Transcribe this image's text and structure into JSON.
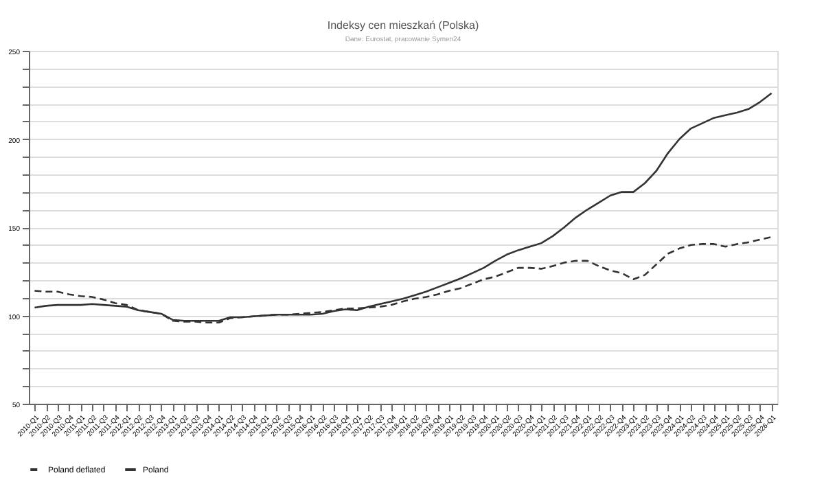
{
  "chart_data": {
    "type": "line",
    "title": "Indeksy cen mieszkań (Polska)",
    "subtitle": "Dane: Eurostat, pracowanie Symen24",
    "categories": [
      "2010-Q1",
      "2010-Q2",
      "2010-Q3",
      "2010-Q4",
      "2011-Q1",
      "2011-Q2",
      "2011-Q3",
      "2011-Q4",
      "2012-Q1",
      "2012-Q2",
      "2012-Q3",
      "2012-Q4",
      "2013-Q1",
      "2013-Q2",
      "2013-Q3",
      "2013-Q4",
      "2014-Q1",
      "2014-Q2",
      "2014-Q3",
      "2014-Q4",
      "2015-Q1",
      "2015-Q2",
      "2015-Q3",
      "2015-Q4",
      "2016-Q1",
      "2016-Q2",
      "2016-Q3",
      "2016-Q4",
      "2017-Q1",
      "2017-Q2",
      "2017-Q3",
      "2017-Q4",
      "2018-Q1",
      "2018-Q2",
      "2018-Q3",
      "2018-Q4",
      "2019-Q1",
      "2019-Q2",
      "2019-Q3",
      "2019-Q4",
      "2020-Q1",
      "2020-Q2",
      "2020-Q3",
      "2020-Q4",
      "2021-Q1",
      "2021-Q2",
      "2021-Q3",
      "2021-Q4",
      "2022-Q1",
      "2022-Q2",
      "2022-Q3",
      "2022-Q4",
      "2023-Q1",
      "2023-Q2",
      "2023-Q3",
      "2023-Q4",
      "2024-Q1",
      "2024-Q2",
      "2024-Q3",
      "2024-Q4",
      "2025-Q1",
      "2025-Q2",
      "2025-Q3",
      "2025-Q4",
      "2026-Q1"
    ],
    "series": [
      {
        "name": "Poland deflated",
        "color": "#333333",
        "line_style": "dashed",
        "values": [
          114,
          113.5,
          113.5,
          112,
          111,
          110.5,
          109,
          107,
          106,
          103,
          102,
          101,
          97,
          96.5,
          96.5,
          96,
          96,
          98.5,
          99,
          99.5,
          100,
          100.5,
          100.5,
          101,
          101.5,
          102,
          103,
          104,
          104,
          104.5,
          105,
          106,
          108,
          109.5,
          110.5,
          112,
          114,
          115.5,
          118,
          120.5,
          122,
          124.5,
          127,
          127,
          126.5,
          128,
          130,
          131,
          131,
          128,
          125.5,
          124,
          120.5,
          123,
          129,
          135,
          138,
          140,
          140.5,
          140.5,
          139,
          140.5,
          141.5,
          143,
          144.5
        ]
      },
      {
        "name": "Poland",
        "color": "#333333",
        "line_style": "solid",
        "values": [
          104.5,
          105.5,
          106,
          106,
          106,
          106.5,
          106,
          105.5,
          105,
          103,
          102,
          101,
          97.5,
          97,
          97,
          97,
          97,
          99,
          99,
          99.5,
          100,
          100.5,
          100.5,
          100.5,
          100.5,
          101,
          102.5,
          103.5,
          103,
          105,
          106.5,
          108,
          109.5,
          111.5,
          113.5,
          116,
          118.5,
          121,
          124,
          127,
          131,
          134.5,
          137,
          139,
          141,
          145,
          150,
          155.5,
          160,
          164,
          168,
          170,
          170,
          175,
          182,
          192,
          200,
          206,
          209,
          212,
          213.5,
          215,
          217,
          221,
          226
        ]
      }
    ],
    "ylim": [
      50,
      250
    ],
    "yticks": [
      50,
      {
        "value": 60,
        "label": null
      },
      {
        "value": 70,
        "label": null
      },
      {
        "value": 80,
        "label": null
      },
      {
        "value": 90,
        "label": null
      },
      100,
      {
        "value": 110,
        "label": null
      },
      {
        "value": 120,
        "label": null
      },
      {
        "value": 130,
        "label": null
      },
      {
        "value": 140,
        "label": null
      },
      150,
      {
        "value": 160,
        "label": null
      },
      {
        "value": 170,
        "label": null
      },
      {
        "value": 180,
        "label": null
      },
      {
        "value": 190,
        "label": null
      },
      200,
      {
        "value": 210,
        "label": null
      },
      {
        "value": 220,
        "label": null
      },
      {
        "value": 230,
        "label": null
      },
      {
        "value": 240,
        "label": null
      },
      250
    ],
    "grid": "y",
    "legend": "bottom",
    "marker": "none"
  }
}
